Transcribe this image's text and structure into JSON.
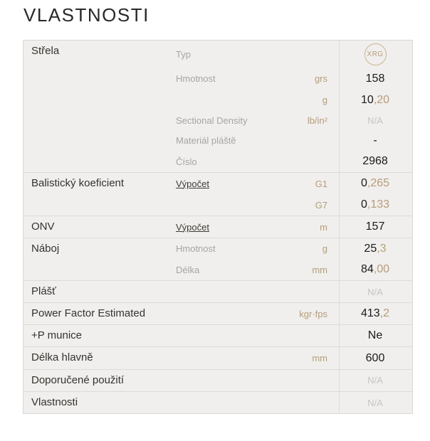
{
  "title": "VLASTNOSTI",
  "colors": {
    "accent_tan": "#b79c78",
    "text_dark": "#33332f",
    "muted_gray": "#a6a5a3",
    "na_gray": "#c6c5c2",
    "table_bg": "#f0efed",
    "border": "#dcdbd8"
  },
  "table": {
    "sections": [
      {
        "label": "Střela",
        "lines": [
          {
            "sub": "Typ",
            "unit": "",
            "badge": "XRG"
          },
          {
            "sub": "Hmotnost",
            "unit": "grs",
            "value": "158"
          },
          {
            "sub": "",
            "unit": "g",
            "value": "10",
            "value_dec": ",20"
          },
          {
            "sub": "Sectional Density",
            "unit": "lb/in²",
            "value": "N/A"
          },
          {
            "sub": "Materiál pláště",
            "unit": "",
            "value": "-"
          },
          {
            "sub": "Číslo",
            "unit": "",
            "value": "2968"
          }
        ]
      },
      {
        "label": "Balistický koeficient",
        "link": "Výpočet",
        "lines": [
          {
            "unit": "G1",
            "value": "0",
            "value_dec": ",265"
          },
          {
            "unit": "G7",
            "value": "0",
            "value_dec": ",133"
          }
        ]
      },
      {
        "label": "ONV",
        "link": "Výpočet",
        "lines": [
          {
            "unit": "m",
            "value": "157"
          }
        ]
      },
      {
        "label": "Náboj",
        "lines": [
          {
            "sub": "Hmotnost",
            "unit": "g",
            "value": "25",
            "value_dec": ",3"
          },
          {
            "sub": "Délka",
            "unit": "mm",
            "value": "84",
            "value_dec": ",00"
          }
        ]
      },
      {
        "label": "Plášť",
        "lines": [
          {
            "value": "N/A"
          }
        ]
      },
      {
        "label": "Power Factor Estimated",
        "lines": [
          {
            "unit": "kgr·fps",
            "value": "413",
            "value_dec": ",2"
          }
        ]
      },
      {
        "label": "+P munice",
        "lines": [
          {
            "value": "Ne"
          }
        ]
      },
      {
        "label": "Délka hlavně",
        "lines": [
          {
            "unit": "mm",
            "value": "600"
          }
        ]
      },
      {
        "label": "Doporučené použití",
        "lines": [
          {
            "value": "N/A"
          }
        ]
      },
      {
        "label": "Vlastnosti",
        "lines": [
          {
            "value": "N/A"
          }
        ]
      }
    ]
  }
}
